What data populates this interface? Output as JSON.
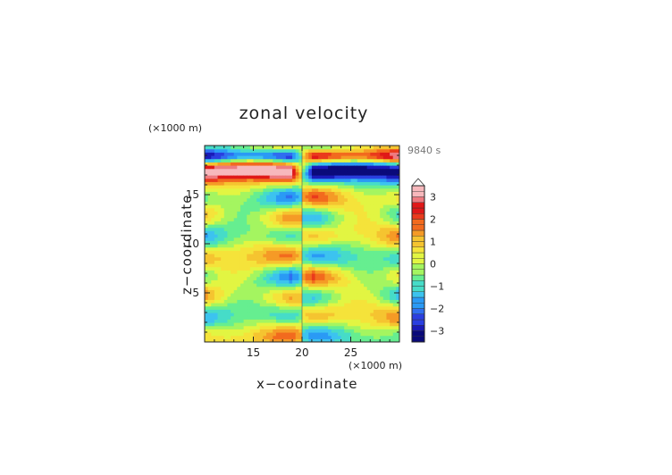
{
  "chart_data": {
    "type": "heatmap",
    "title": "zonal velocity",
    "xlabel": "x−coordinate",
    "ylabel": "z−coordinate",
    "x_unit": "(×1000 m)",
    "y_unit": "(×1000 m)",
    "time_label": "9840 s",
    "xlim": [
      10,
      30
    ],
    "ylim": [
      0,
      20
    ],
    "x_ticks": [
      15,
      20,
      25
    ],
    "y_ticks": [
      5,
      10,
      15
    ],
    "x_tick_labels": [
      "15",
      "20",
      "25"
    ],
    "y_tick_labels": [
      "5",
      "10",
      "15"
    ],
    "colorbar": {
      "min": -3.5,
      "max": 3.5,
      "step": 0.25,
      "tick_values": [
        3,
        2,
        1,
        0,
        -1,
        -2,
        -3
      ],
      "tick_labels": [
        "3",
        "2",
        "1",
        "0",
        "−1",
        "−2",
        "−3"
      ]
    },
    "colors": {
      "scale": [
        "#0a0a7a",
        "#1a1ab8",
        "#2a3fe0",
        "#2f6ef0",
        "#2a9af5",
        "#3cc3ef",
        "#46dcc8",
        "#66ee90",
        "#a4f560",
        "#e2f542",
        "#f5e33a",
        "#f5c430",
        "#f59a26",
        "#f26a1e",
        "#ea3a1c",
        "#e01818",
        "#ee7a80",
        "#f7b8bc",
        "#ffffff"
      ]
    }
  }
}
